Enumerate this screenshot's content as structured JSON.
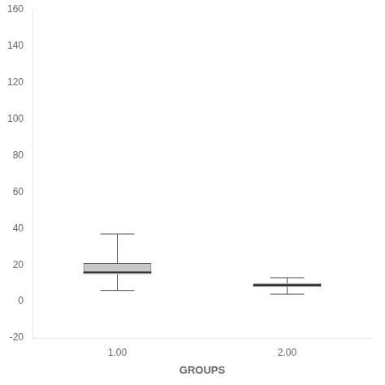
{
  "chart_data": {
    "type": "boxplot",
    "xlabel": "GROUPS",
    "categories": [
      "1.00",
      "2.00"
    ],
    "values": [
      {
        "whislo": 6,
        "q1": 15,
        "med": 16,
        "q3": 21,
        "whishi": 37
      },
      {
        "whislo": 4,
        "q1": 8,
        "med": 9,
        "q3": 10,
        "whishi": 13
      }
    ],
    "color": "#c8c8c8",
    "ylim": [
      -20,
      160
    ],
    "yticks": [
      -20,
      0,
      20,
      40,
      60,
      80,
      100,
      120,
      140,
      160
    ],
    "grid": false
  }
}
